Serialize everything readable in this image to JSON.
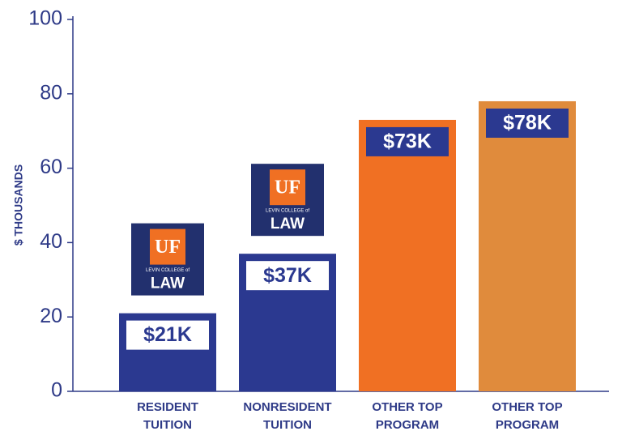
{
  "chart_data": {
    "type": "bar",
    "y_label": "$ THOUSANDS",
    "categories": [
      "RESIDENT\nTUITION",
      "NONRESIDENT\nTUITION",
      "OTHER TOP\nPROGRAM",
      "OTHER TOP\nPROGRAM"
    ],
    "values": [
      21,
      37,
      73,
      78
    ],
    "value_labels": [
      "$21K",
      "$37K",
      "$73K",
      "$78K"
    ],
    "colors": [
      "#2b3990",
      "#2b3990",
      "#f07023",
      "#e08b3c"
    ],
    "ylim": [
      0,
      100
    ],
    "yticks": [
      0,
      20,
      40,
      60,
      80,
      100
    ],
    "logo": {
      "mark": "UF",
      "line1": "LEVIN COLLEGE of",
      "line2": "LAW"
    }
  }
}
